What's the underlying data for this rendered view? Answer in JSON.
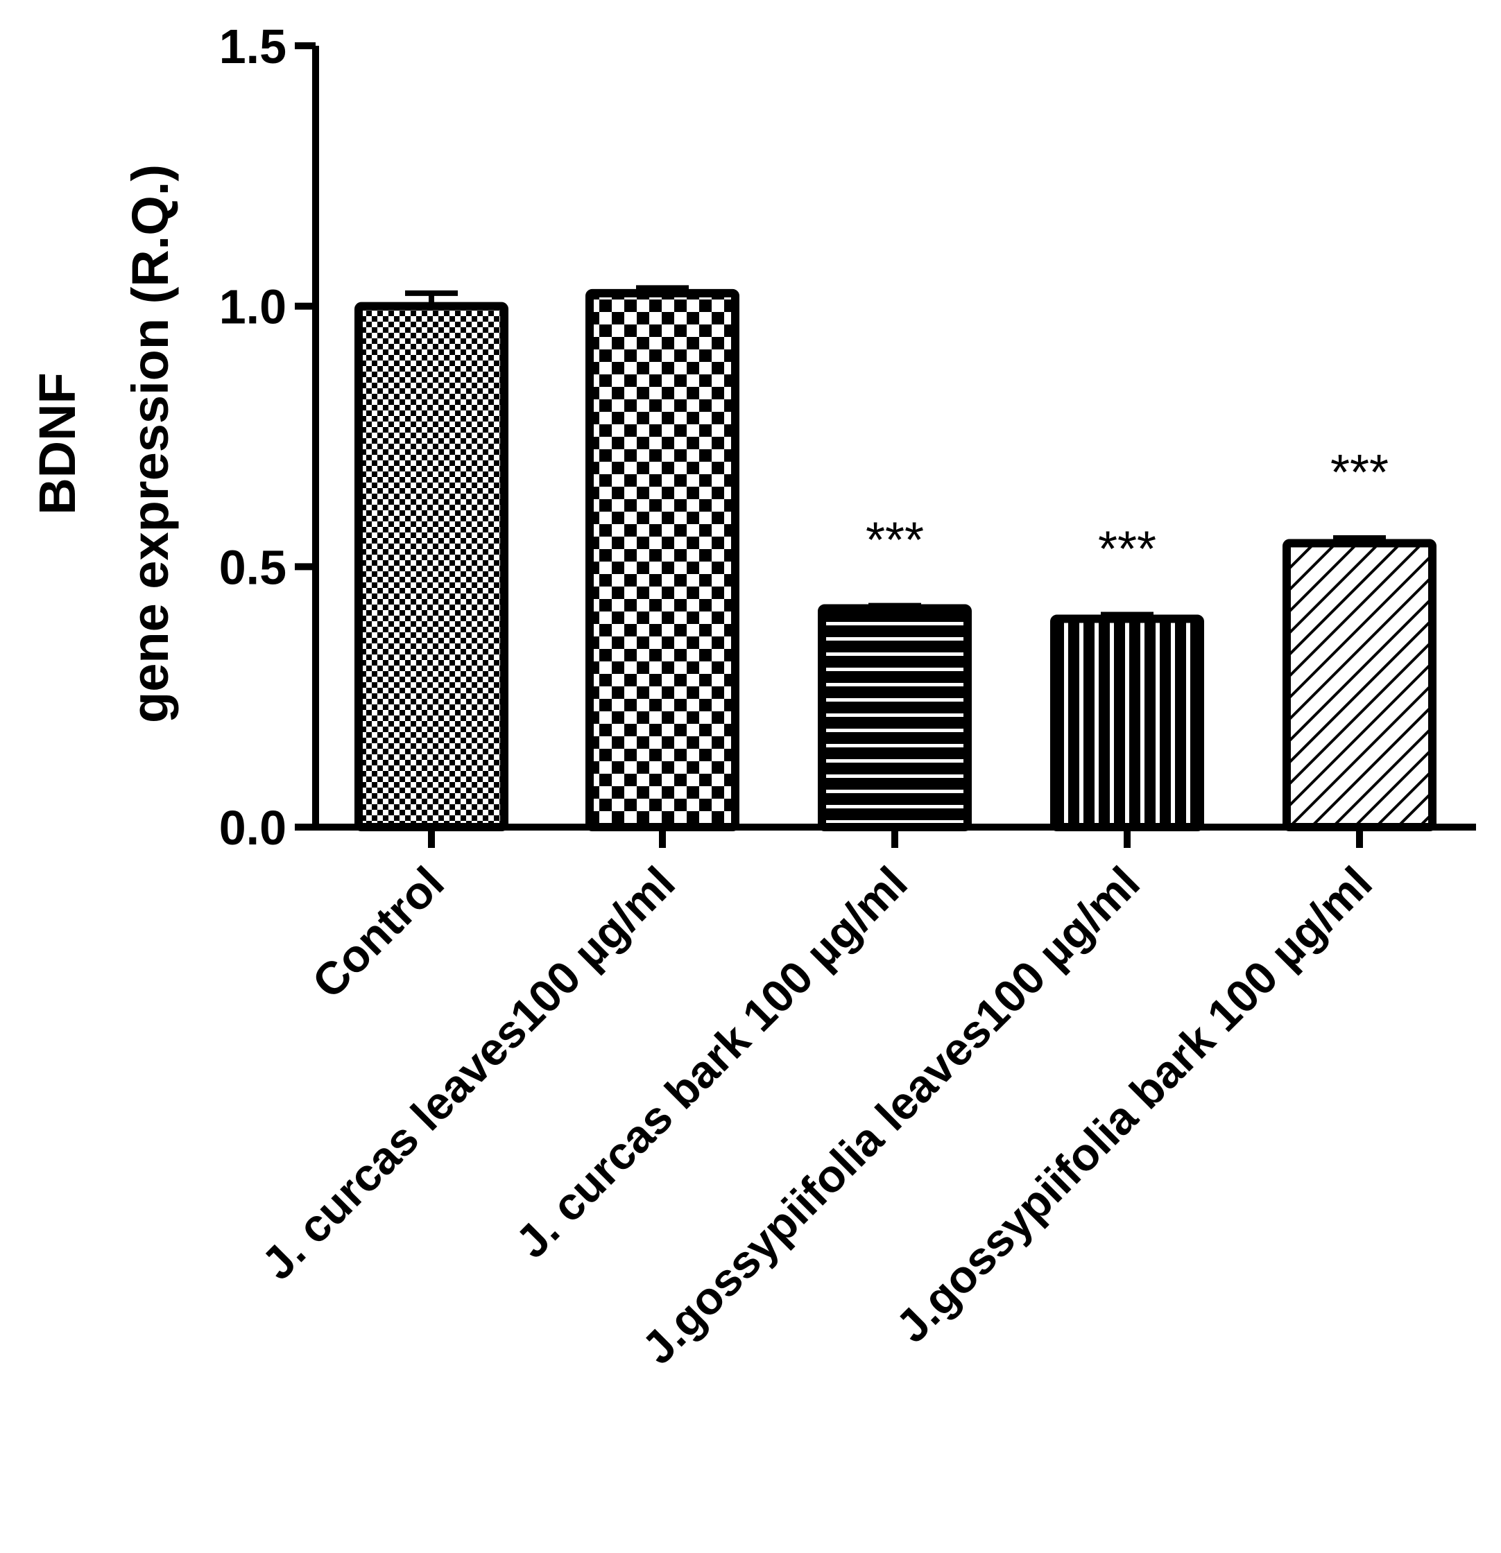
{
  "chart_data": {
    "type": "bar",
    "categories": [
      "Control",
      "J. curcas leaves100 µg/ml",
      "J. curcas bark 100 µg/ml",
      "J.gossypiifolia leaves100 µg/ml",
      "J.gossypiifolia bark 100 µg/ml"
    ],
    "values": [
      1.0,
      1.025,
      0.42,
      0.4,
      0.545
    ],
    "errors": [
      0.025,
      0.01,
      0.005,
      0.008,
      0.01
    ],
    "annotations": [
      "",
      "",
      "***",
      "***",
      "***"
    ],
    "patterns": [
      "fine-checker",
      "coarse-checker",
      "horizontal-stripes",
      "vertical-stripes",
      "diagonal-stripes"
    ],
    "ylabel_line1": "BDNF",
    "ylabel_line2": "gene expression (R.Q.)",
    "xlabel": "",
    "title": "",
    "yticks": [
      "0.0",
      "0.5",
      "1.0",
      "1.5"
    ],
    "ylim": [
      0,
      1.5
    ],
    "grid": false,
    "colors": {
      "bar_outline": "#000000",
      "fill": "#ffffff",
      "text": "#000000"
    }
  }
}
